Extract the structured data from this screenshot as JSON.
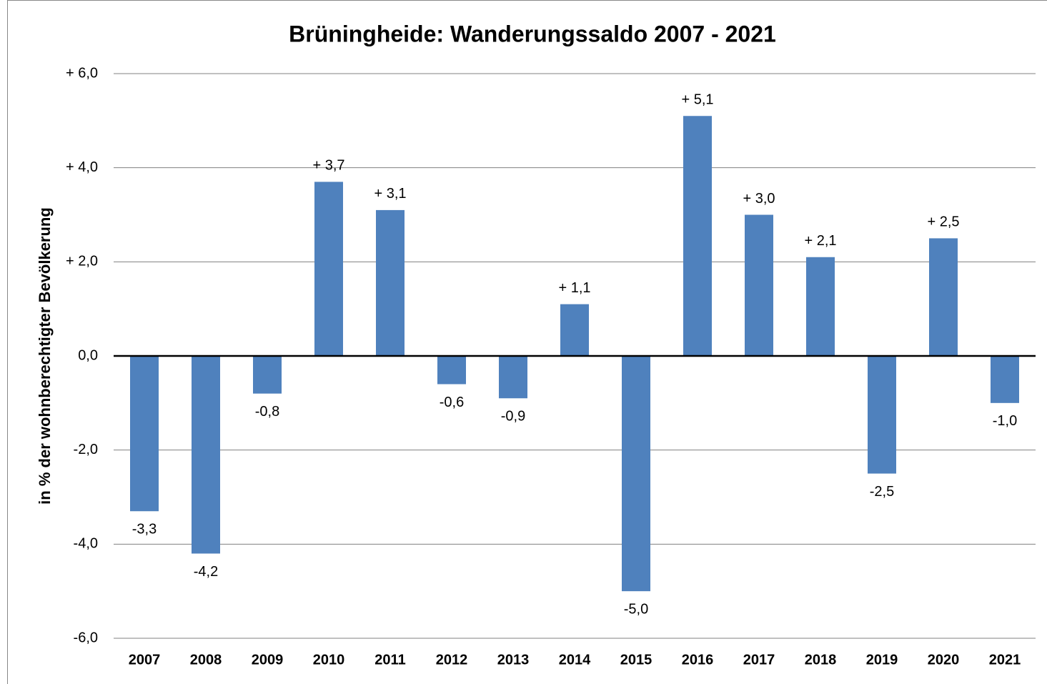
{
  "chart_data": {
    "type": "bar",
    "title": "Brüningheide: Wanderungssaldo 2007 - 2021",
    "y_label": "in % der wohnberechtigter Bevölkerung",
    "categories": [
      "2007",
      "2008",
      "2009",
      "2010",
      "2011",
      "2012",
      "2013",
      "2014",
      "2015",
      "2016",
      "2017",
      "2018",
      "2019",
      "2020",
      "2021"
    ],
    "values": [
      -3.3,
      -4.2,
      -0.8,
      3.7,
      3.1,
      -0.6,
      -0.9,
      1.1,
      -5.0,
      5.1,
      3.0,
      2.1,
      -2.5,
      2.5,
      -1.0
    ],
    "value_labels": [
      "-3,3",
      "-4,2",
      "-0,8",
      "+ 3,7",
      "+ 3,1",
      "-0,6",
      "-0,9",
      "+ 1,1",
      "-5,0",
      "+ 5,1",
      "+ 3,0",
      "+ 2,1",
      "-2,5",
      "+ 2,5",
      "-1,0"
    ],
    "color": "#4f81bd",
    "ylim": [
      -6,
      6
    ],
    "yticks": [
      {
        "value": -6,
        "label": "-6,0"
      },
      {
        "value": -4,
        "label": "-4,0"
      },
      {
        "value": -2,
        "label": "-2,0"
      },
      {
        "value": 0,
        "label": "0,0"
      },
      {
        "value": 2,
        "label": "+ 2,0"
      },
      {
        "value": 4,
        "label": "+ 4,0"
      },
      {
        "value": 6,
        "label": "+ 6,0"
      }
    ],
    "grid": true
  }
}
